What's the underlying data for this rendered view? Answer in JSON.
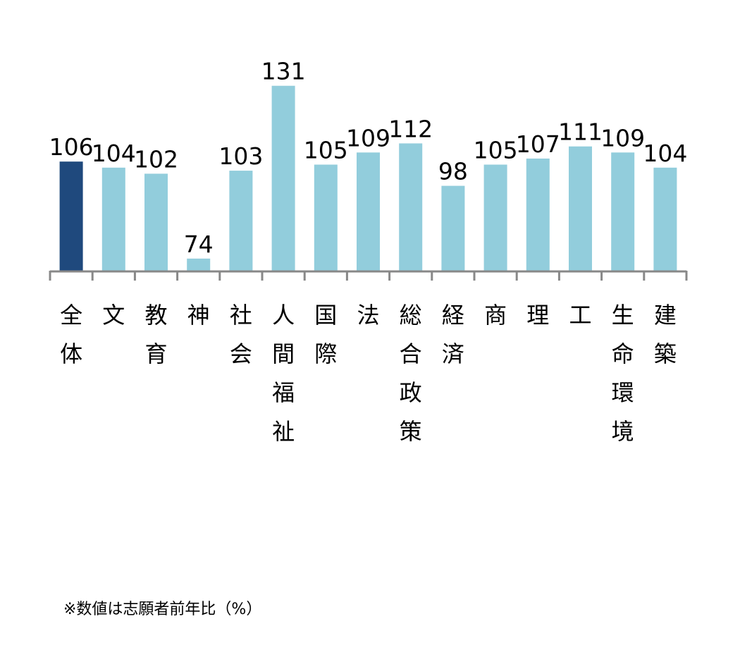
{
  "chart_data": {
    "type": "bar",
    "categories": [
      "全体",
      "文",
      "教育",
      "神",
      "社会",
      "人間福祉",
      "国際",
      "法",
      "総合政策",
      "経済",
      "商",
      "理",
      "工",
      "生命環境",
      "建築"
    ],
    "values": [
      106,
      104,
      102,
      74,
      103,
      131,
      105,
      109,
      112,
      98,
      105,
      107,
      111,
      109,
      104
    ],
    "ylim": [
      70,
      150
    ],
    "grid": false,
    "highlight_index": 0,
    "colors": {
      "highlight": "#1F497D",
      "default": "#92CDDC",
      "axis": "#888888"
    }
  },
  "note": "※数値は志願者前年比（%）"
}
